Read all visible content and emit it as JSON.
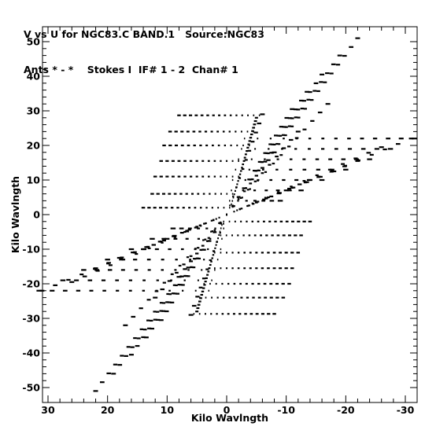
{
  "header": {
    "line1": "V vs U for NGC83.C BAND.1   Source:NGC83",
    "line2": "Ants * - *    Stokes I  IF# 1 - 2  Chan# 1"
  },
  "colors": {
    "ink": "#000000",
    "background": "#ffffff"
  },
  "chart_data": {
    "type": "scatter",
    "title": "V vs U for NGC83.C BAND.1   Source:NGC83",
    "subtitle": "Ants * - *    Stokes I  IF# 1 - 2  Chan# 1",
    "xlabel": "Kilo Wavlngth",
    "ylabel": "Kilo Wavlngth",
    "xlim": [
      31,
      -32
    ],
    "ylim": [
      -52,
      53
    ],
    "x_reversed": true,
    "grid": false,
    "x_ticks": [
      30,
      20,
      10,
      0,
      -10,
      -20,
      -30
    ],
    "x_tick_labels": [
      "30",
      "20",
      "10",
      "0",
      "-10",
      "-20",
      "-30"
    ],
    "y_ticks": [
      50,
      40,
      30,
      20,
      10,
      0,
      -10,
      -20,
      -30,
      -40,
      -50
    ],
    "y_tick_labels": [
      "50",
      "40",
      "30",
      "20",
      "10",
      "0",
      "-10",
      "-20",
      "-30",
      "-40",
      "-50"
    ],
    "series": [
      {
        "description": "long baselines, horizontal tracks",
        "values": [
          {
            "v": 22.0,
            "u_start": -3.0,
            "u_end": -31.5
          },
          {
            "v": 19.0,
            "u_start": -2.5,
            "u_end": -27.5
          },
          {
            "v": 16.0,
            "u_start": -2.0,
            "u_end": -24.0
          },
          {
            "v": 13.0,
            "u_start": -1.5,
            "u_end": -20.0
          },
          {
            "v": 10.0,
            "u_start": -1.0,
            "u_end": -16.0
          },
          {
            "v": 7.0,
            "u_start": -0.8,
            "u_end": -12.5
          },
          {
            "v": 4.0,
            "u_start": -0.5,
            "u_end": -9.0
          },
          {
            "v": -4.0,
            "u_start": 0.5,
            "u_end": 9.0
          },
          {
            "v": -7.0,
            "u_start": 0.8,
            "u_end": 12.5
          },
          {
            "v": -10.0,
            "u_start": 1.0,
            "u_end": 16.0
          },
          {
            "v": -13.0,
            "u_start": 1.5,
            "u_end": 20.0
          },
          {
            "v": -16.0,
            "u_start": 2.0,
            "u_end": 24.0
          },
          {
            "v": -19.0,
            "u_start": 2.5,
            "u_end": 27.5
          },
          {
            "v": -22.0,
            "u_start": 3.0,
            "u_end": 31.5
          }
        ]
      },
      {
        "description": "short baselines, horizontal tracks",
        "values": [
          {
            "v": 28.7,
            "u_start": -5.5,
            "u_end": 8.0
          },
          {
            "v": 24.0,
            "u_start": -4.5,
            "u_end": 9.5
          },
          {
            "v": 20.0,
            "u_start": -3.8,
            "u_end": 10.5
          },
          {
            "v": 15.5,
            "u_start": -3.0,
            "u_end": 11.0
          },
          {
            "v": 11.0,
            "u_start": -2.0,
            "u_end": 12.0
          },
          {
            "v": 6.0,
            "u_start": -1.0,
            "u_end": 12.5
          },
          {
            "v": 2.0,
            "u_start": -0.5,
            "u_end": 14.0
          },
          {
            "v": -2.0,
            "u_start": 0.5,
            "u_end": -14.0
          },
          {
            "v": -6.0,
            "u_start": 1.0,
            "u_end": -12.5
          },
          {
            "v": -11.0,
            "u_start": 2.0,
            "u_end": -12.0
          },
          {
            "v": -15.5,
            "u_start": 3.0,
            "u_end": -11.0
          },
          {
            "v": -20.0,
            "u_start": 3.8,
            "u_end": -10.5
          },
          {
            "v": -24.0,
            "u_start": 4.5,
            "u_end": -9.5
          },
          {
            "v": -28.7,
            "u_start": 5.5,
            "u_end": -8.0
          }
        ]
      },
      {
        "description": "radial spokes through the origin",
        "values": [
          {
            "u_end": -22.0,
            "v_end": 51.0
          },
          {
            "u_end": -19.0,
            "v_end": 46.0
          },
          {
            "u_end": -16.0,
            "v_end": 40.5
          },
          {
            "u_end": -13.5,
            "v_end": 35.5
          },
          {
            "u_end": -11.0,
            "v_end": 30.5
          },
          {
            "u_end": -6.0,
            "v_end": 29.0
          },
          {
            "u_end": -31.0,
            "v_end": 22.0
          },
          {
            "u_end": -26.0,
            "v_end": 19.5
          },
          {
            "u_end": -22.0,
            "v_end": 15.5
          },
          {
            "u_end": -18.0,
            "v_end": 12.5
          },
          {
            "u_end": -14.0,
            "v_end": 10.0
          },
          {
            "u_end": -10.0,
            "v_end": 7.0
          },
          {
            "u_end": -17.0,
            "v_end": 32.0
          },
          {
            "u_end": -12.0,
            "v_end": 24.0
          },
          {
            "u_end": -8.0,
            "v_end": 18.0
          }
        ]
      },
      {
        "description": "near-vertical dense tracks",
        "values": [
          {
            "u_start": -0.8,
            "v_start": 3.0,
            "u_end": -5.0,
            "v_end": 28.0
          },
          {
            "u_start": 0.8,
            "v_start": -3.0,
            "u_end": 5.0,
            "v_end": -28.0
          }
        ]
      }
    ]
  }
}
